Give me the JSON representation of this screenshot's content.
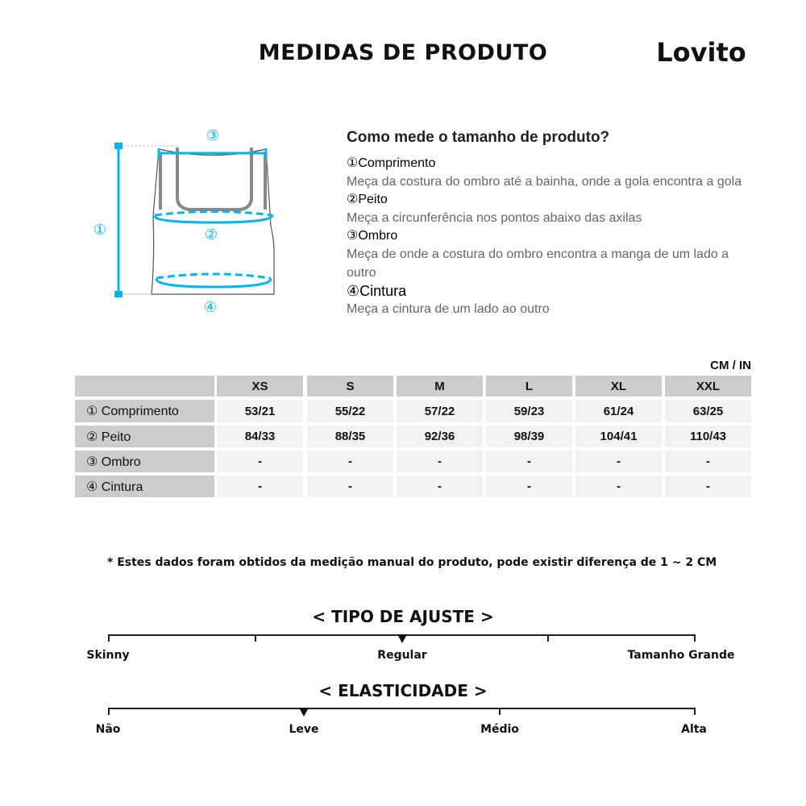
{
  "header": {
    "title": "MEDIDAS DE PRODUTO",
    "brand": "Lovito"
  },
  "diagram": {
    "labels": [
      "①",
      "②",
      "③",
      "④"
    ],
    "accent_color": "#00b4f0"
  },
  "howto": {
    "question": "Como mede o tamanho de produto?",
    "items": [
      {
        "heading": "①Comprimento",
        "desc": "Meça da costura do ombro até a bainha, onde a gola encontra a gola"
      },
      {
        "heading": "②Peito",
        "desc": "Meça a circunferência nos pontos abaixo das axilas"
      },
      {
        "heading": "③Ombro",
        "desc": "Meça de onde a costura do ombro encontra a manga de um lado a outro"
      },
      {
        "heading": "④Cintura",
        "desc": "Meça a cintura de um lado ao outro"
      }
    ]
  },
  "table": {
    "unit": "CM / IN",
    "sizes": [
      "XS",
      "S",
      "M",
      "L",
      "XL",
      "XXL"
    ],
    "rows": [
      {
        "label": "① Comprimento",
        "values": [
          "53/21",
          "55/22",
          "57/22",
          "59/23",
          "61/24",
          "63/25"
        ]
      },
      {
        "label": "② Peito",
        "values": [
          "84/33",
          "88/35",
          "92/36",
          "98/39",
          "104/41",
          "110/43"
        ]
      },
      {
        "label": "③ Ombro",
        "values": [
          "-",
          "-",
          "-",
          "-",
          "-",
          "-"
        ]
      },
      {
        "label": "④ Cintura",
        "values": [
          "-",
          "-",
          "-",
          "-",
          "-",
          "-"
        ]
      }
    ]
  },
  "note": "* Estes dados foram obtidos da medição manual do produto, pode existir diferença de 1 ~ 2 CM",
  "fit": {
    "title": "< TIPO DE AJUSTE >",
    "labels": [
      "Skinny",
      "Regular",
      "Tamanho Grande"
    ],
    "selected": "Regular",
    "marker_fraction": 0.5
  },
  "elasticity": {
    "title": "< ELASTICIDADE >",
    "labels": [
      "Não",
      "Leve",
      "Médio",
      "Alta"
    ],
    "selected": "Leve",
    "marker_fraction": 0.333
  }
}
